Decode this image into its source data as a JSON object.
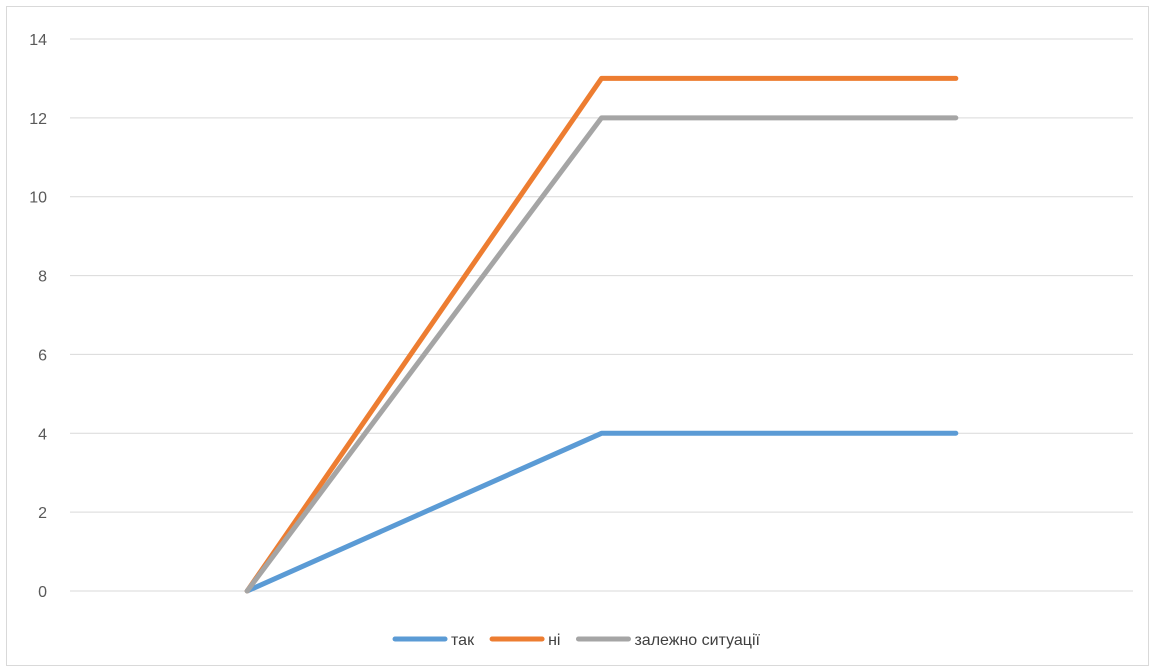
{
  "chart_data": {
    "type": "line",
    "categories": [
      "",
      "",
      ""
    ],
    "series": [
      {
        "name": "так",
        "values": [
          0,
          4,
          4
        ],
        "color": "#5b9bd5"
      },
      {
        "name": "ні",
        "values": [
          0,
          13,
          13
        ],
        "color": "#ed7d31"
      },
      {
        "name": "залежно ситуації",
        "values": [
          0,
          12,
          12
        ],
        "color": "#a5a5a5"
      }
    ],
    "title": "",
    "xlabel": "",
    "ylabel": "",
    "ylim": [
      0,
      14
    ],
    "yticks": [
      "0",
      "2",
      "4",
      "6",
      "8",
      "10",
      "12",
      "14"
    ],
    "grid": true,
    "legend_position": "bottom",
    "gridline_color": "#d9d9d9"
  }
}
